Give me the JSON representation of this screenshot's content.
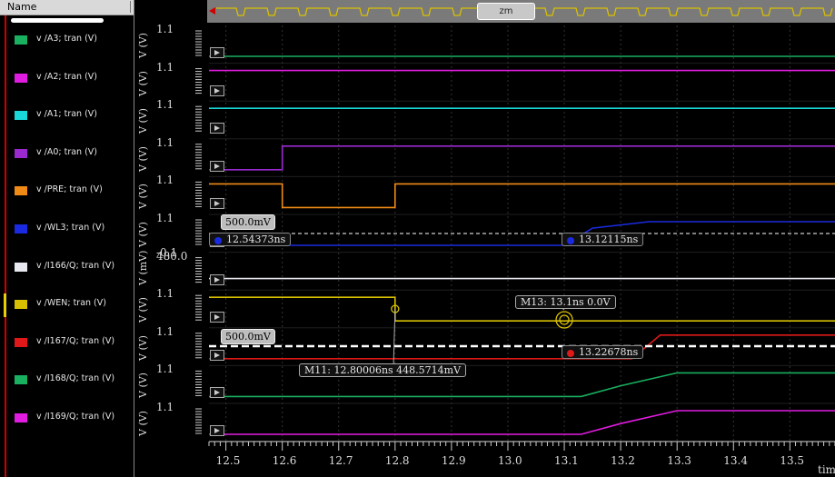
{
  "sidebar": {
    "header": "Name",
    "signals": [
      {
        "label": "v /A3; tran (V)",
        "color": "#19b060"
      },
      {
        "label": "v /A2; tran (V)",
        "color": "#e01ce0"
      },
      {
        "label": "v /A1; tran (V)",
        "color": "#18d8d8"
      },
      {
        "label": "v /A0; tran (V)",
        "color": "#9a2ad0"
      },
      {
        "label": "v /PRE; tran (V)",
        "color": "#f08a16"
      },
      {
        "label": "v /WL3; tran (V)",
        "color": "#1a2ae0"
      },
      {
        "label": "v /I166/Q; tran (V)",
        "color": "#e8e8f0"
      },
      {
        "label": "v /WEN; tran (V)",
        "color": "#d8c000"
      },
      {
        "label": "v /I167/Q; tran (V)",
        "color": "#e01818"
      },
      {
        "label": "v /I168/Q; tran (V)",
        "color": "#19b060"
      },
      {
        "label": "v /I169/Q; tran (V)",
        "color": "#e01ce0"
      }
    ]
  },
  "plot": {
    "rows": [
      {
        "ytop": "1.1",
        "vlabel": "V (V)"
      },
      {
        "ytop": "1.1",
        "vlabel": "V (V)"
      },
      {
        "ytop": "1.1",
        "vlabel": "V (V)"
      },
      {
        "ytop": "1.1",
        "vlabel": "V (V)"
      },
      {
        "ytop": "1.1",
        "vlabel": "V (V)"
      },
      {
        "ytop": "1.1",
        "ybottom": "-0.1",
        "vlabel": "V (V)"
      },
      {
        "ytop": "480.0",
        "vlabel": "V (mV)"
      },
      {
        "ytop": "1.1",
        "vlabel": "V (V)"
      },
      {
        "ytop": "1.1",
        "vlabel": "V (V)"
      },
      {
        "ytop": "1.1",
        "vlabel": "V (V)"
      },
      {
        "ytop": "1.1",
        "vlabel": "V (V)"
      }
    ],
    "xticks": [
      "12.5",
      "12.6",
      "12.7",
      "12.8",
      "12.9",
      "13.0",
      "13.1",
      "13.2",
      "13.3",
      "13.4",
      "13.5"
    ],
    "xunit": "tim",
    "threshold1": "500.0mV",
    "threshold2": "500.0mV",
    "markers": {
      "wl3_left": "12.54373ns",
      "wl3_right": "13.12115ns",
      "i167_right": "13.22678ns",
      "m13": "M13: 13.1ns 0.0V",
      "m11": "M11: 12.80006ns 448.5714mV"
    },
    "overview_zoom": "zm"
  },
  "chart_data": {
    "type": "line",
    "xlabel": "tim",
    "xlim": [
      12.47,
      13.58
    ],
    "series": [
      {
        "name": "v /A3; tran (V)",
        "x": [
          12.47,
          13.58
        ],
        "values": [
          0.0,
          0.0
        ]
      },
      {
        "name": "v /A2; tran (V)",
        "x": [
          12.47,
          13.58
        ],
        "values": [
          1.1,
          1.1
        ]
      },
      {
        "name": "v /A1; tran (V)",
        "x": [
          12.47,
          13.58
        ],
        "values": [
          1.1,
          1.1
        ]
      },
      {
        "name": "v /A0; tran (V)",
        "x": [
          12.47,
          12.6,
          12.6,
          13.58
        ],
        "values": [
          0.0,
          0.0,
          1.1,
          1.1
        ]
      },
      {
        "name": "v /PRE; tran (V)",
        "x": [
          12.47,
          12.6,
          12.6,
          12.8,
          12.8,
          13.58
        ],
        "values": [
          1.1,
          1.1,
          0.0,
          0.0,
          1.1,
          1.1
        ]
      },
      {
        "name": "v /WL3; tran (V)",
        "x": [
          12.47,
          13.1,
          13.15,
          13.25,
          13.58
        ],
        "values": [
          0.0,
          0.0,
          0.8,
          1.1,
          1.1
        ]
      },
      {
        "name": "v /I166/Q; tran (V)",
        "x": [
          12.47,
          13.58
        ],
        "values": [
          0.48,
          0.48
        ]
      },
      {
        "name": "v /WEN; tran (V)",
        "x": [
          12.47,
          12.8,
          12.8,
          13.58
        ],
        "values": [
          1.1,
          1.1,
          0.0,
          0.0
        ]
      },
      {
        "name": "v /I167/Q; tran (V)",
        "x": [
          12.47,
          13.22,
          13.27,
          13.58
        ],
        "values": [
          0.0,
          0.0,
          1.1,
          1.1
        ]
      },
      {
        "name": "v /I168/Q; tran (V)",
        "x": [
          12.47,
          13.13,
          13.2,
          13.3,
          13.58
        ],
        "values": [
          0.0,
          0.0,
          0.5,
          1.1,
          1.1
        ]
      },
      {
        "name": "v /I169/Q; tran (V)",
        "x": [
          12.47,
          13.13,
          13.2,
          13.3,
          13.58
        ],
        "values": [
          0.0,
          0.0,
          0.5,
          1.1,
          1.1
        ]
      }
    ]
  }
}
